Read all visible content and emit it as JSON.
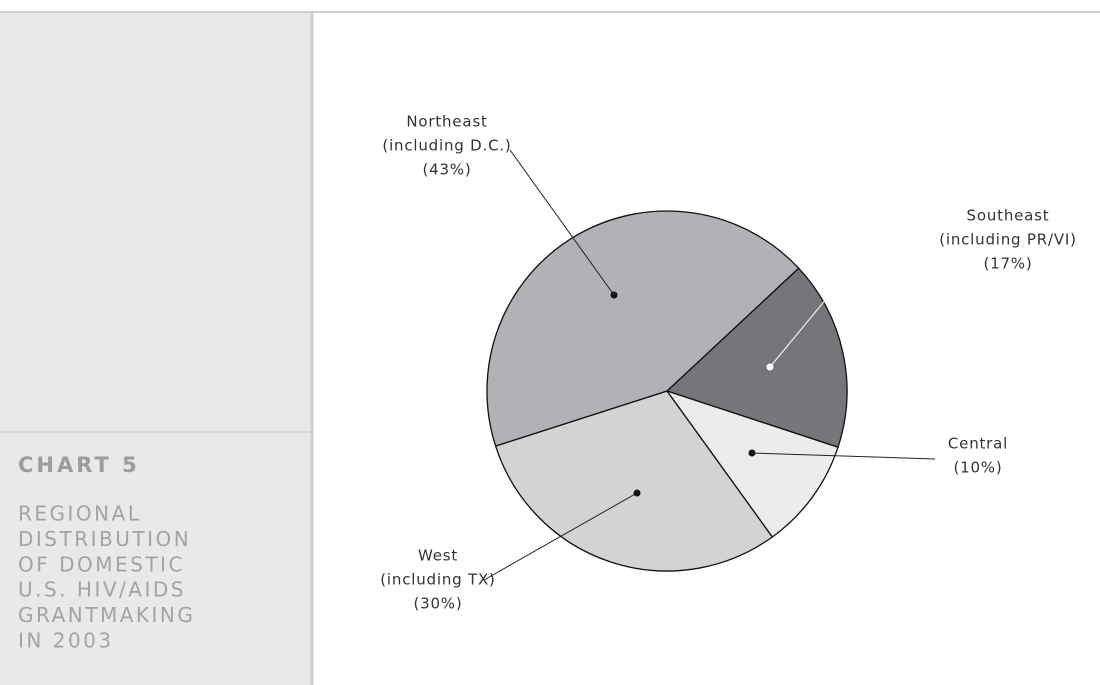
{
  "chart_data": {
    "type": "pie",
    "title": "CHART 5",
    "subtitle": [
      "REGIONAL",
      "DISTRIBUTION",
      "OF DOMESTIC",
      "U.S. HIV/AIDS",
      "GRANTMAKING",
      "IN 2003"
    ],
    "categories": [
      "Southeast",
      "Central",
      "West",
      "Northeast"
    ],
    "notes": [
      "(including PR/VI)",
      null,
      "(including TX)",
      "(including D.C.)"
    ],
    "values": [
      17,
      10,
      30,
      43
    ],
    "value_labels": [
      "(17%)",
      "(10%)",
      "(30%)",
      "(43%)"
    ],
    "colors": [
      "#75767a",
      "#ececec",
      "#d3d3d5",
      "#b1b2b5"
    ]
  }
}
